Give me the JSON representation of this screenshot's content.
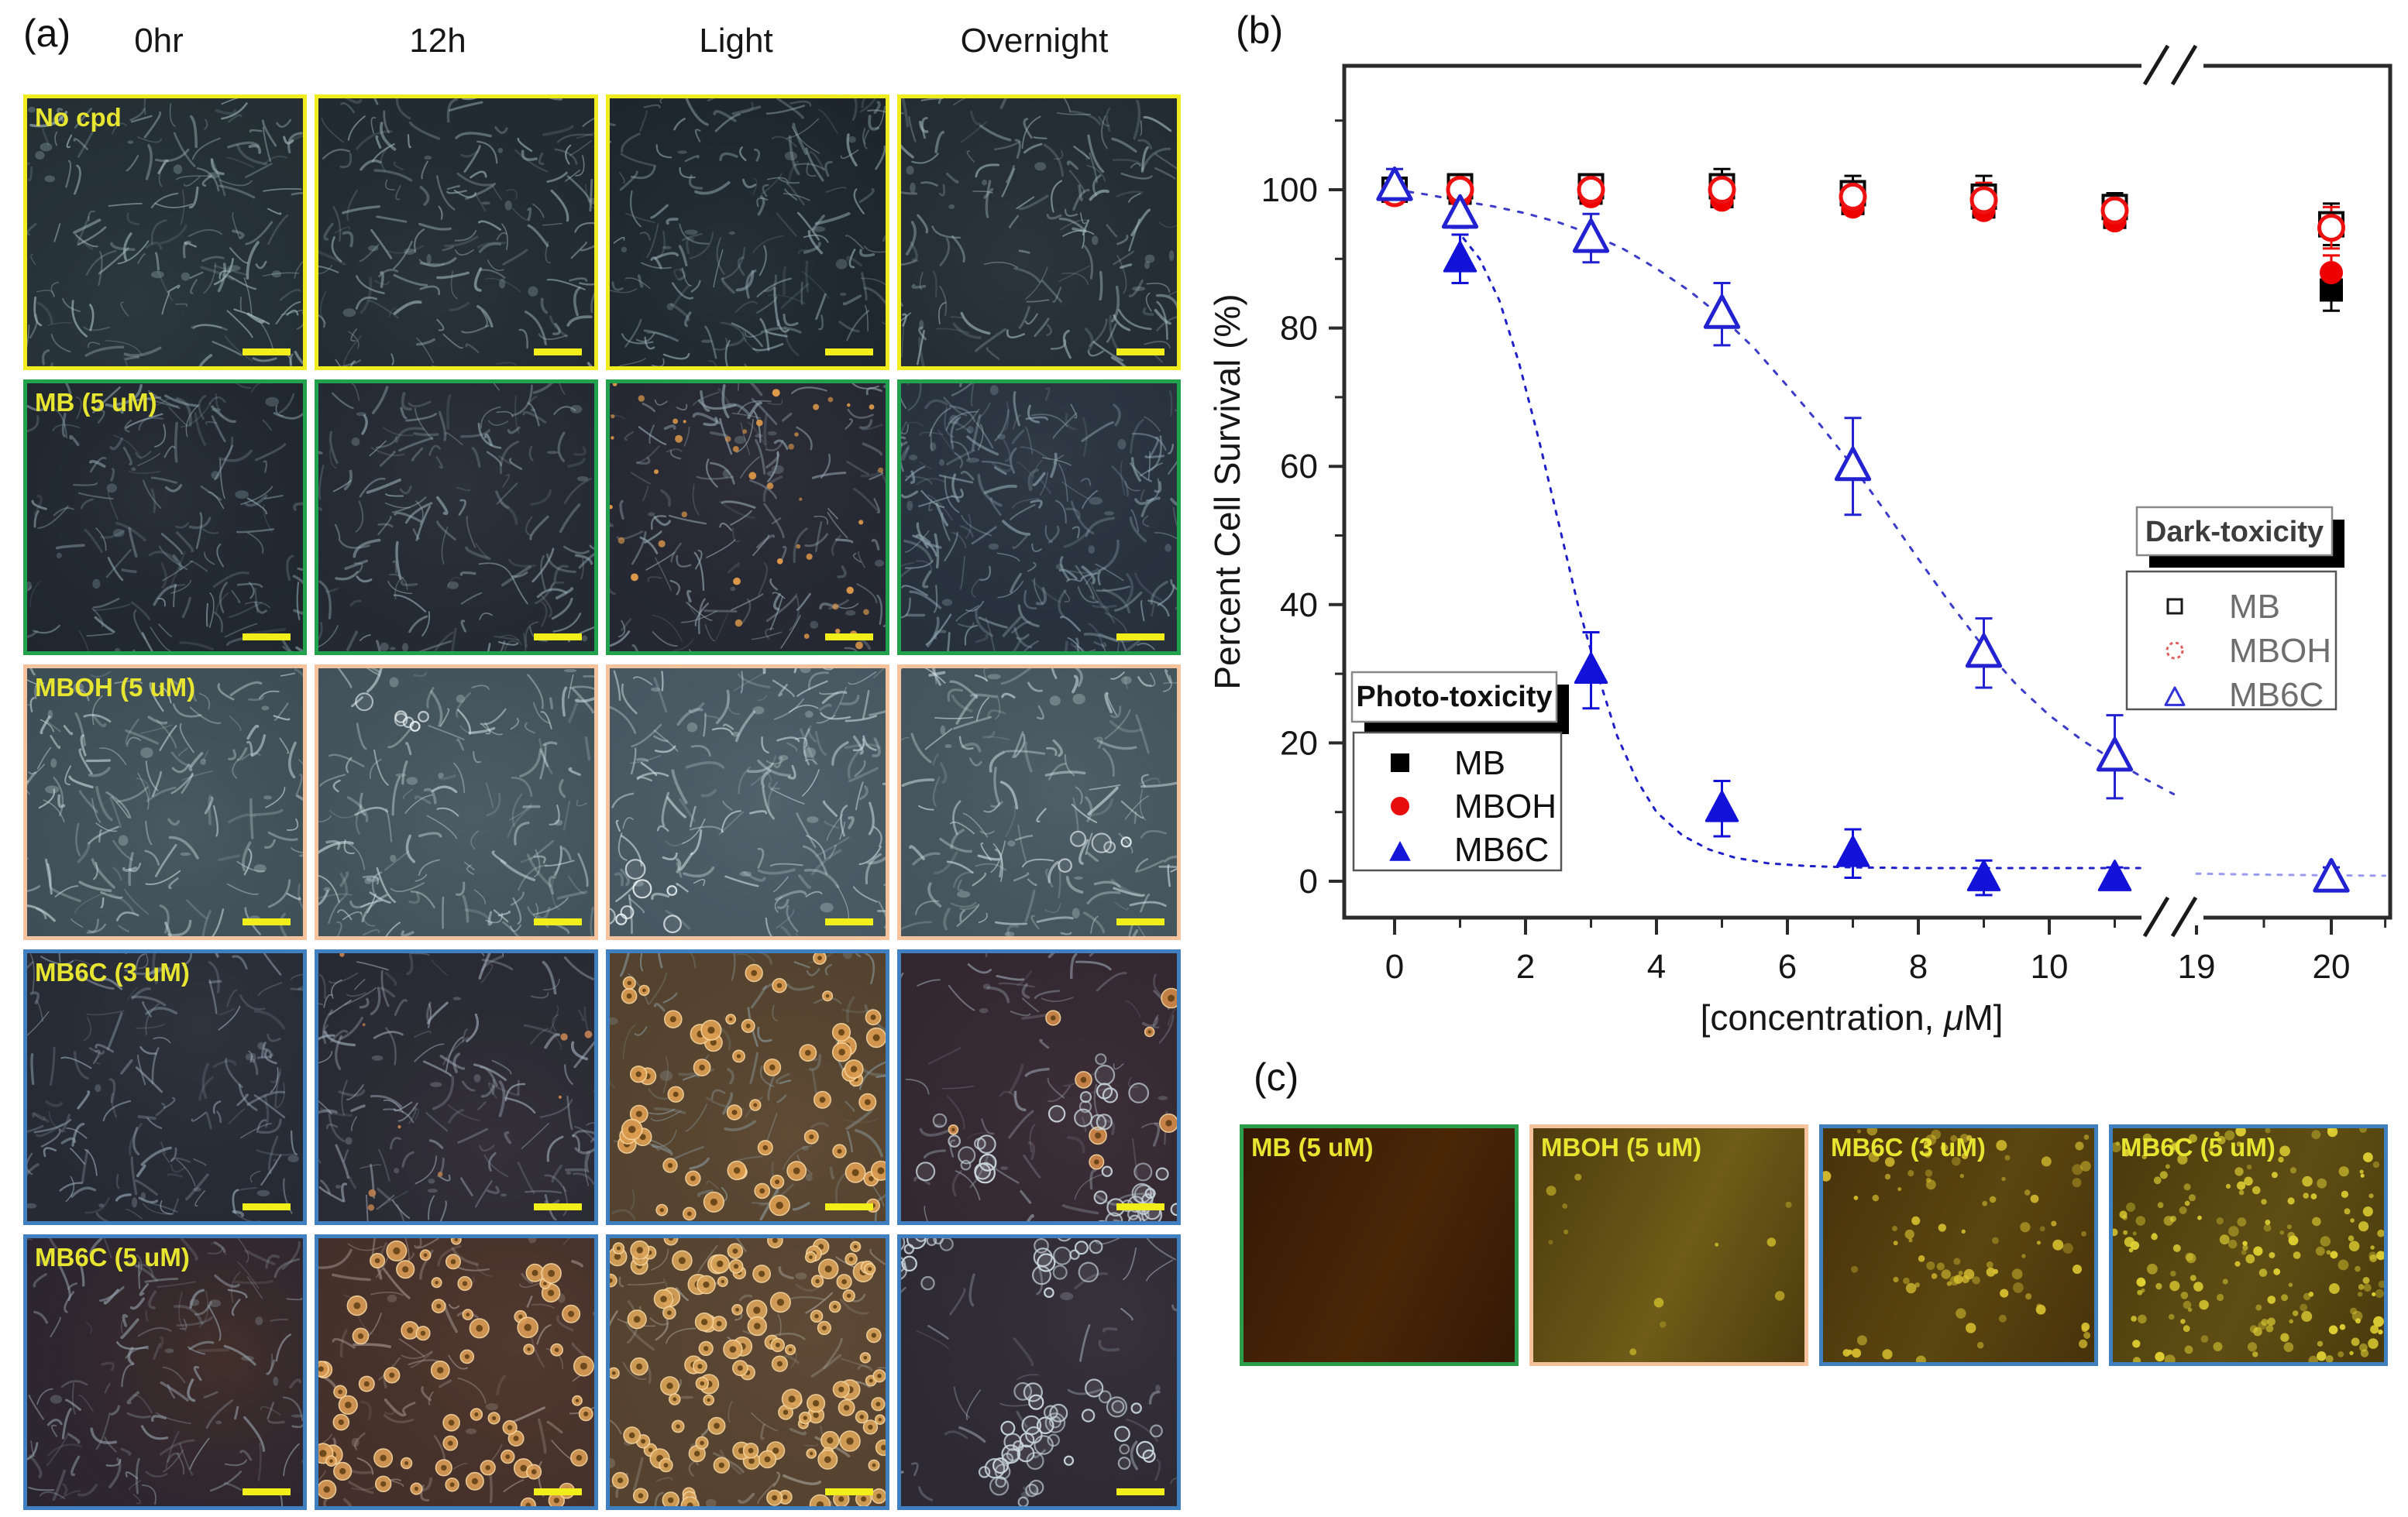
{
  "panel_labels": {
    "a": "(a)",
    "b": "(b)",
    "c": "(c)"
  },
  "panel_a": {
    "column_headers": [
      "0hr",
      "12h",
      "Light",
      "Overnight"
    ],
    "label_color": "#e8e531",
    "scalebar_color": "#f2ee19",
    "rows": [
      {
        "label": "No cpd",
        "border": "#f0ec20",
        "tiles": [
          {
            "base": "#232f34",
            "base2": "#2c3a40",
            "stroke": "#a7bcc0",
            "mesh": 150
          },
          {
            "base": "#202a30",
            "base2": "#2a343a",
            "stroke": "#9fb4ba",
            "mesh": 150
          },
          {
            "base": "#1d262c",
            "base2": "#27313a",
            "stroke": "#97acb4",
            "mesh": 165
          },
          {
            "base": "#222c32",
            "base2": "#2c363c",
            "stroke": "#a2b8bd",
            "mesh": 150
          }
        ]
      },
      {
        "label": "MB (5 uM)",
        "border": "#22a24e",
        "tiles": [
          {
            "base": "#1f262e",
            "base2": "#293039",
            "stroke": "#93a8b2",
            "mesh": 150
          },
          {
            "base": "#232932",
            "base2": "#2d333c",
            "stroke": "#9aafb8",
            "mesh": 150
          },
          {
            "base": "#242832",
            "base2": "#2e2e38",
            "stroke": "#95a8b2",
            "mesh": 150,
            "specks": 42,
            "speck_color": "#e09a4a"
          },
          {
            "base": "#27313c",
            "base2": "#313b46",
            "stroke": "#8fa6ae",
            "mesh": 230
          }
        ]
      },
      {
        "label": "MBOH (5 uM)",
        "border": "#f4c29c",
        "tiles": [
          {
            "base": "#3e4e56",
            "base2": "#4a5a62",
            "stroke": "#c9d8dc",
            "mesh": 155
          },
          {
            "base": "#42525a",
            "base2": "#4e5e66",
            "stroke": "#ccdade",
            "mesh": 150,
            "rings": 6,
            "ring_color": "#e8f0f2"
          },
          {
            "base": "#475760",
            "base2": "#53636c",
            "stroke": "#d0dee2",
            "mesh": 160,
            "rings": 8,
            "ring_color": "#eef6f8"
          },
          {
            "base": "#44545c",
            "base2": "#506068",
            "stroke": "#cddbdf",
            "mesh": 150,
            "rings": 5,
            "ring_color": "#e8f0f2"
          }
        ]
      },
      {
        "label": "MB6C (3 uM)",
        "border": "#4080c0",
        "tiles": [
          {
            "base": "#252a34",
            "base2": "#2f343e",
            "stroke": "#9aa9b8",
            "mesh": 150
          },
          {
            "base": "#282a33",
            "base2": "#36303a",
            "stroke": "#a0adba",
            "mesh": 150,
            "specks": 9,
            "speck_color": "#c08050"
          },
          {
            "base": "#53422e",
            "base2": "#614c36",
            "stroke": "#8a9a9c",
            "mesh": 95,
            "orange": 55,
            "orange_color": "#dc9c50"
          },
          {
            "base": "#332830",
            "base2": "#3d2f38",
            "stroke": "#9aa4b0",
            "mesh": 75,
            "rings": 42,
            "ring_color": "#c8d4dc",
            "orange": 8,
            "orange_color": "#d08848"
          }
        ]
      },
      {
        "label": "MB6C (5 uM)",
        "border": "#4080c0",
        "tiles": [
          {
            "base": "#2b2530",
            "base2": "#44302a",
            "stroke": "#98a4ae",
            "mesh": 140
          },
          {
            "base": "#44302a",
            "base2": "#523a30",
            "stroke": "#a89a92",
            "mesh": 85,
            "orange": 62,
            "orange_color": "#d89a54"
          },
          {
            "base": "#55422f",
            "base2": "#5f4a36",
            "stroke": "#a8a49a",
            "mesh": 65,
            "orange": 115,
            "orange_color": "#d8a258"
          },
          {
            "base": "#2e2a34",
            "base2": "#38323c",
            "stroke": "#a0aab6",
            "mesh": 35,
            "rings": 72,
            "ring_color": "#cad6de"
          }
        ]
      }
    ]
  },
  "chart_data": {
    "type": "scatter",
    "title": "",
    "ylabel": "Percent Cell Survival  (%)",
    "xlabel_prefix": "[concentration, ",
    "xlabel_mu": "μ",
    "xlabel_suffix": "M]",
    "ylim": [
      0,
      118
    ],
    "xlim_main": [
      0,
      11.5
    ],
    "xlim_second": [
      19,
      20.45
    ],
    "axis_break": true,
    "y_ticks": [
      0,
      20,
      40,
      60,
      80,
      100
    ],
    "y_minor": [
      10,
      30,
      50,
      70,
      90,
      110
    ],
    "x_ticks_main": [
      0,
      2,
      4,
      6,
      8,
      10
    ],
    "x_minor_main": [
      1,
      3,
      5,
      7,
      9,
      11
    ],
    "x_ticks_break": [
      19,
      20
    ],
    "x_minor_break": [
      19.5,
      20.4
    ],
    "legend_photo": {
      "title": "Photo-toxicity",
      "items": [
        {
          "label": "MB",
          "marker": "filled-square",
          "color": "#000000"
        },
        {
          "label": "MBOH",
          "marker": "filled-circle",
          "color": "#e80d0d"
        },
        {
          "label": "MB6C",
          "marker": "filled-triangle",
          "color": "#1515d8"
        }
      ]
    },
    "legend_dark": {
      "title": "Dark-toxicity",
      "items": [
        {
          "label": "MB",
          "marker": "open-square",
          "color": "#1a1a1a"
        },
        {
          "label": "MBOH",
          "marker": "open-circle",
          "color": "#e06060"
        },
        {
          "label": "MB6C",
          "marker": "open-triangle",
          "color": "#3232d8"
        }
      ]
    },
    "series": [
      {
        "name": "MB photo-toxicity",
        "marker": "filled-square",
        "color": "#000000",
        "x": [
          1,
          3,
          5,
          7,
          9,
          11,
          20
        ],
        "y": [
          99.5,
          99.5,
          99,
          98,
          97.5,
          96,
          85.5
        ],
        "err": [
          0,
          0,
          0,
          0,
          0,
          0,
          3
        ]
      },
      {
        "name": "MB dark-toxicity",
        "marker": "open-square",
        "color": "#000000",
        "x": [
          0,
          1,
          3,
          5,
          7,
          9,
          11,
          20
        ],
        "y": [
          100,
          100.5,
          100.5,
          100.5,
          99.5,
          99,
          97.5,
          95
        ],
        "err": [
          1.5,
          1.5,
          1.5,
          2.5,
          2.5,
          3,
          2,
          3
        ]
      },
      {
        "name": "MBOH photo-toxicity",
        "marker": "filled-circle",
        "color": "#ee0000",
        "x": [
          1,
          3,
          5,
          7,
          9,
          11,
          20
        ],
        "y": [
          99,
          99,
          98.5,
          97.5,
          97,
          95.5,
          88
        ],
        "err": [
          0,
          0,
          0,
          0,
          0,
          0,
          2.5
        ]
      },
      {
        "name": "MBOH dark-toxicity",
        "marker": "open-circle",
        "color": "#ee1111",
        "x": [
          0,
          1,
          3,
          5,
          7,
          9,
          11,
          20
        ],
        "y": [
          99.5,
          100,
          100,
          100,
          99,
          98.5,
          97,
          94.5
        ],
        "err": [
          1.5,
          1.5,
          1.5,
          2,
          2,
          2.5,
          1.5,
          3
        ]
      },
      {
        "name": "MB6C dark-toxicity",
        "marker": "open-triangle",
        "color": "#2222d0",
        "x": [
          0,
          1,
          3,
          5,
          7,
          9,
          11,
          20
        ],
        "y": [
          100.5,
          96.5,
          93,
          82,
          60,
          33,
          18,
          0.5
        ],
        "err": [
          2.5,
          2,
          3.5,
          4.5,
          7,
          5,
          6,
          1.5
        ]
      },
      {
        "name": "MB6C photo-toxicity",
        "marker": "filled-triangle",
        "color": "#1212d8",
        "x": [
          1,
          3,
          5,
          7,
          9,
          11
        ],
        "y": [
          90,
          30.5,
          10.5,
          4,
          0.5,
          0.5
        ],
        "err": [
          3.5,
          5.5,
          4,
          3.5,
          2.5,
          1.5
        ]
      }
    ],
    "fit_curves": [
      {
        "name": "MB6C dark-toxicity fit",
        "color": "#3c3cc8",
        "dash": "6 12",
        "points": [
          [
            0,
            100
          ],
          [
            0.5,
            99.3
          ],
          [
            1,
            98.4
          ],
          [
            1.5,
            97.6
          ],
          [
            2,
            96.6
          ],
          [
            2.5,
            95.3
          ],
          [
            3,
            93.6
          ],
          [
            3.5,
            91.4
          ],
          [
            4,
            88.6
          ],
          [
            4.5,
            85.4
          ],
          [
            5,
            81.6
          ],
          [
            5.5,
            77
          ],
          [
            6,
            71.6
          ],
          [
            6.5,
            66
          ],
          [
            7,
            60
          ],
          [
            7.5,
            53.4
          ],
          [
            8,
            46.6
          ],
          [
            8.5,
            40
          ],
          [
            9,
            33.8
          ],
          [
            9.5,
            28.4
          ],
          [
            10,
            24
          ],
          [
            10.5,
            20.4
          ],
          [
            11,
            17.4
          ],
          [
            11.5,
            14.6
          ],
          [
            11.9,
            12.6
          ]
        ]
      },
      {
        "name": "MB6C photo-toxicity fit",
        "color": "#2020c8",
        "dash": "5 10",
        "points": [
          [
            1.05,
            93
          ],
          [
            1.3,
            90
          ],
          [
            1.6,
            84
          ],
          [
            1.9,
            75
          ],
          [
            2.2,
            64
          ],
          [
            2.5,
            52
          ],
          [
            2.8,
            40
          ],
          [
            3.1,
            30
          ],
          [
            3.4,
            21
          ],
          [
            3.7,
            14.6
          ],
          [
            4,
            10
          ],
          [
            4.4,
            6.6
          ],
          [
            4.8,
            4.6
          ],
          [
            5.2,
            3.4
          ],
          [
            5.7,
            2.6
          ],
          [
            6.3,
            2.2
          ],
          [
            7,
            2
          ],
          [
            8,
            1.9
          ],
          [
            9,
            1.9
          ],
          [
            10,
            1.9
          ],
          [
            11,
            1.9
          ],
          [
            11.5,
            1.9
          ]
        ]
      },
      {
        "name": "tail after break",
        "color": "#9a9af0",
        "dash": "5 10",
        "points": [
          [
            19,
            1.1
          ],
          [
            19.5,
            0.95
          ],
          [
            20,
            0.85
          ],
          [
            20.4,
            0.8
          ]
        ]
      }
    ]
  },
  "panel_c": {
    "label_color": "#e8e531",
    "tiles": [
      {
        "label": "MB (5 uM)",
        "border": "#2a9e4a",
        "base": "#34190545",
        "bg1": "#351905",
        "bg2": "#4a2607",
        "dots": 0,
        "dot_color": "#d8c22a"
      },
      {
        "label": "MBOH (5 uM)",
        "border": "#f4c29c",
        "bg1": "#4e3c0e",
        "bg2": "#6e5c18",
        "dots": 12,
        "dot_color": "#c8b428"
      },
      {
        "label": "MB6C (3 uM)",
        "border": "#4080c0",
        "bg1": "#48320a",
        "bg2": "#5a4610",
        "dots": 95,
        "dot_color": "#d8c030"
      },
      {
        "label": "MB6C (5 uM)",
        "border": "#4080c0",
        "bg1": "#4a3a0c",
        "bg2": "#5e4e14",
        "dots": 185,
        "dot_color": "#e4d434"
      }
    ]
  }
}
